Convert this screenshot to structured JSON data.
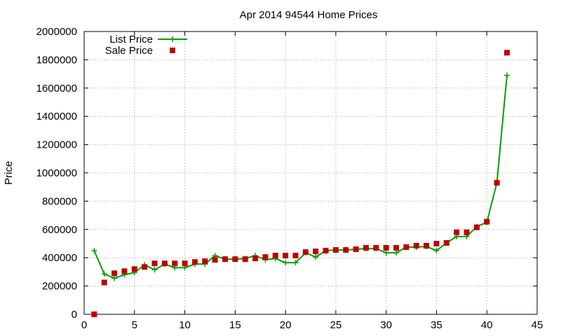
{
  "chart_data": {
    "type": "line",
    "title": "Apr 2014 94544 Home Prices",
    "xlabel": "",
    "ylabel": "Price",
    "xlim": [
      0,
      45
    ],
    "ylim": [
      0,
      2000000
    ],
    "xticks": [
      0,
      5,
      10,
      15,
      20,
      25,
      30,
      35,
      40,
      45
    ],
    "yticks": [
      0,
      200000,
      400000,
      600000,
      800000,
      1000000,
      1200000,
      1400000,
      1600000,
      1800000,
      2000000
    ],
    "grid": true,
    "legend_position": "top-left",
    "series": [
      {
        "name": "List Price",
        "style": "line-points",
        "marker": "plus",
        "color": "#00a000",
        "x": [
          1,
          2,
          3,
          4,
          5,
          6,
          7,
          8,
          9,
          10,
          11,
          12,
          13,
          14,
          15,
          16,
          17,
          18,
          19,
          20,
          21,
          22,
          23,
          24,
          25,
          26,
          27,
          28,
          29,
          30,
          31,
          32,
          33,
          34,
          35,
          36,
          37,
          38,
          39,
          40,
          41,
          42
        ],
        "values": [
          450000,
          285000,
          255000,
          280000,
          295000,
          350000,
          315000,
          355000,
          330000,
          330000,
          355000,
          355000,
          415000,
          390000,
          390000,
          395000,
          415000,
          385000,
          395000,
          365000,
          365000,
          435000,
          405000,
          450000,
          455000,
          455000,
          460000,
          465000,
          465000,
          435000,
          435000,
          475000,
          475000,
          480000,
          450000,
          505000,
          550000,
          550000,
          620000,
          650000,
          930000,
          1690000
        ]
      },
      {
        "name": "Sale Price",
        "style": "points",
        "marker": "square",
        "color": "#c00000",
        "x": [
          1,
          2,
          3,
          4,
          5,
          6,
          7,
          8,
          9,
          10,
          11,
          12,
          13,
          14,
          15,
          16,
          17,
          18,
          19,
          20,
          21,
          22,
          23,
          24,
          25,
          26,
          27,
          28,
          29,
          30,
          31,
          32,
          33,
          34,
          35,
          36,
          37,
          38,
          39,
          40,
          41,
          42
        ],
        "values": [
          0,
          225000,
          290000,
          305000,
          320000,
          335000,
          360000,
          360000,
          360000,
          360000,
          370000,
          375000,
          385000,
          390000,
          390000,
          390000,
          395000,
          405000,
          415000,
          415000,
          415000,
          440000,
          445000,
          450000,
          455000,
          455000,
          460000,
          470000,
          470000,
          470000,
          470000,
          475000,
          485000,
          485000,
          500000,
          505000,
          580000,
          580000,
          615000,
          655000,
          930000,
          1850000
        ]
      }
    ]
  }
}
